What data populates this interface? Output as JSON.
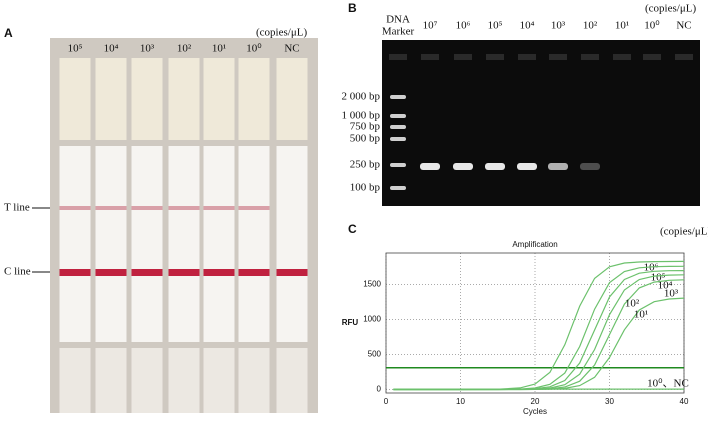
{
  "panel_a": {
    "label": "A",
    "unit": "(copies/μL)",
    "lanes": [
      "10⁵",
      "10⁴",
      "10³",
      "10²",
      "10¹",
      "10⁰",
      "NC"
    ],
    "t_line": "T line",
    "c_line": "C line"
  },
  "panel_b": {
    "label": "B",
    "unit": "(copies/μL)",
    "marker": [
      "DNA",
      "Marker"
    ],
    "lanes": [
      "10⁷",
      "10⁶",
      "10⁵",
      "10⁴",
      "10³",
      "10²",
      "10¹",
      "10⁰",
      "NC"
    ],
    "sizes": [
      "2 000 bp",
      "1 000 bp",
      "750 bp",
      "500 bp",
      "250 bp",
      "100 bp"
    ]
  },
  "chart_data": {
    "type": "line",
    "panel_label": "C",
    "unit": "(copies/μL)",
    "title": "Amplification",
    "x_label": "Cycles",
    "y_label": "RFU",
    "x": [
      1,
      10,
      15,
      18,
      20,
      22,
      24,
      26,
      28,
      30,
      32,
      34,
      36,
      38,
      40
    ],
    "series": [
      {
        "name": "10⁶",
        "color": "#6cc16c",
        "values": [
          0,
          0,
          4,
          23,
          77,
          244,
          638,
          1192,
          1587,
          1753,
          1807,
          1822,
          1827,
          1829,
          1830
        ]
      },
      {
        "name": "10⁵",
        "color": "#6cc16c",
        "values": [
          0,
          0,
          1,
          6,
          22,
          74,
          235,
          614,
          1147,
          1526,
          1686,
          1738,
          1754,
          1758,
          1760
        ]
      },
      {
        "name": "10⁴",
        "color": "#6cc16c",
        "values": [
          0,
          0,
          0,
          3,
          11,
          39,
          129,
          379,
          850,
          1321,
          1571,
          1661,
          1689,
          1697,
          1699
        ]
      },
      {
        "name": "10³",
        "color": "#6cc16c",
        "values": [
          0,
          0,
          0,
          1,
          6,
          20,
          69,
          218,
          572,
          1068,
          1422,
          1571,
          1620,
          1634,
          1638
        ]
      },
      {
        "name": "10²",
        "color": "#6cc16c",
        "values": [
          0,
          0,
          0,
          0,
          2,
          10,
          36,
          119,
          350,
          785,
          1220,
          1451,
          1534,
          1560,
          1567
        ]
      },
      {
        "name": "10¹",
        "color": "#6cc16c",
        "values": [
          0,
          0,
          0,
          0,
          1,
          5,
          16,
          55,
          174,
          457,
          853,
          1136,
          1254,
          1293,
          1305
        ]
      },
      {
        "name": "10⁰、NC",
        "color": "#6cc16c",
        "values": [
          5,
          5,
          5,
          5,
          5,
          5,
          5,
          5,
          5,
          5,
          5,
          5,
          5,
          5,
          5
        ]
      }
    ],
    "threshold": 310,
    "threshold_color": "#1f8a1f",
    "xlim": [
      0,
      40
    ],
    "xticks": [
      0,
      10,
      20,
      30,
      40
    ],
    "ylim": [
      -50,
      1950
    ],
    "yticks": [
      0,
      500,
      1000,
      1500
    ],
    "grid": true
  }
}
